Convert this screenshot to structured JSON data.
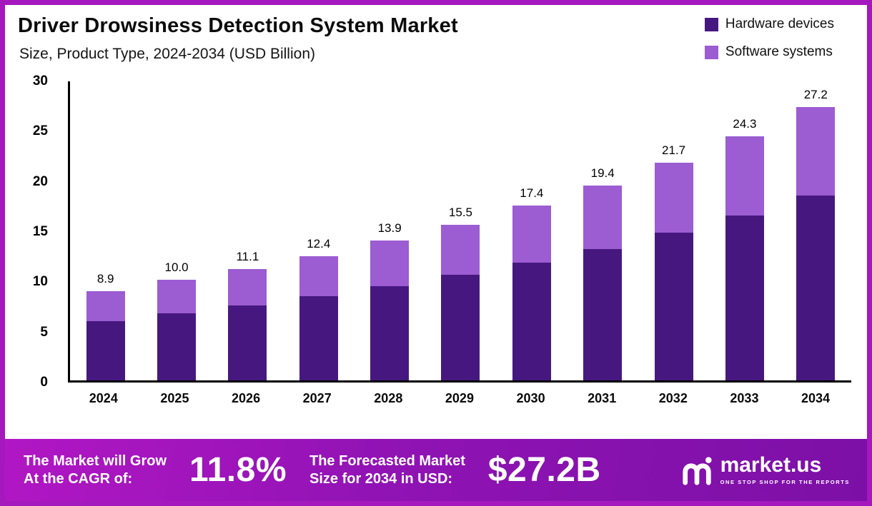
{
  "header": {
    "title": "Driver Drowsiness Detection System Market",
    "subtitle": "Size, Product Type, 2024-2034 (USD Billion)"
  },
  "legend": {
    "items": [
      {
        "label": "Hardware devices",
        "color": "#46187F"
      },
      {
        "label": "Software systems",
        "color": "#9C5CD2"
      }
    ]
  },
  "chart_data": {
    "type": "bar",
    "stacked": true,
    "title": "Driver Drowsiness Detection System Market",
    "subtitle": "Size, Product Type, 2024-2034 (USD Billion)",
    "categories": [
      "2024",
      "2025",
      "2026",
      "2027",
      "2028",
      "2029",
      "2030",
      "2031",
      "2032",
      "2033",
      "2034"
    ],
    "series": [
      {
        "name": "Hardware devices",
        "color": "#46187F",
        "values": [
          5.9,
          6.7,
          7.5,
          8.4,
          9.4,
          10.5,
          11.7,
          13.1,
          14.7,
          16.4,
          18.4
        ]
      },
      {
        "name": "Software systems",
        "color": "#9C5CD2",
        "values": [
          3.0,
          3.3,
          3.6,
          4.0,
          4.5,
          5.0,
          5.7,
          6.3,
          7.0,
          7.9,
          8.8
        ]
      }
    ],
    "totals": [
      "8.9",
      "10.0",
      "11.1",
      "12.4",
      "13.9",
      "15.5",
      "17.4",
      "19.4",
      "21.7",
      "24.3",
      "27.2"
    ],
    "ylim": [
      0,
      30
    ],
    "yticks": [
      0,
      5,
      10,
      15,
      20,
      25,
      30
    ],
    "xlabel": "",
    "ylabel": "",
    "grid": false,
    "legend_position": "top-right"
  },
  "banner": {
    "cagr_label_line1": "The Market will Grow",
    "cagr_label_line2": "At the CAGR of:",
    "cagr_value": "11.8%",
    "forecast_label_line1": "The Forecasted Market",
    "forecast_label_line2": "Size for 2034 in USD:",
    "forecast_value": "$27.2B",
    "logo": {
      "text": "market.us",
      "tagline": "ONE STOP SHOP FOR THE REPORTS"
    }
  }
}
